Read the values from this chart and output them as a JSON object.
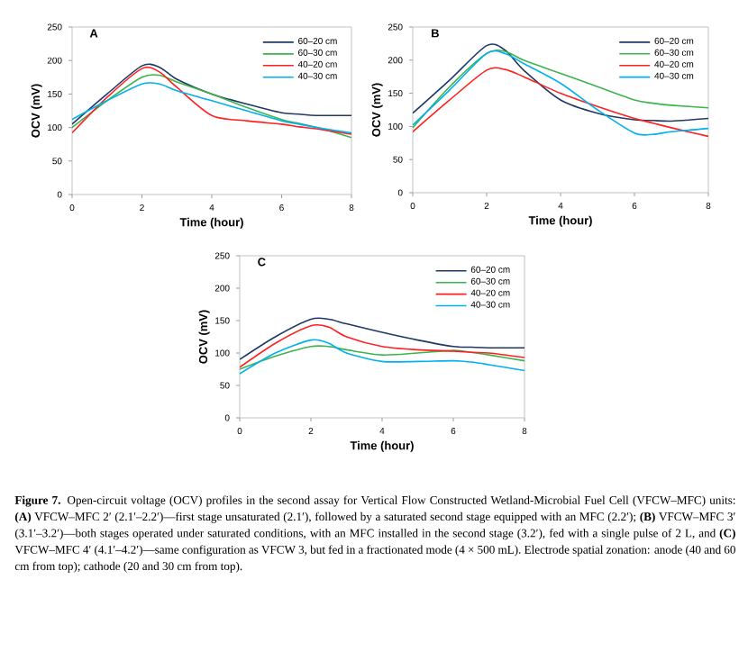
{
  "chart_data": [
    {
      "type": "line",
      "title": "A",
      "xlabel": "Time (hour)",
      "ylabel": "OCV (mV)",
      "x": [
        0,
        1,
        2,
        2.5,
        3,
        4,
        5,
        6,
        6.5,
        7,
        8
      ],
      "xlim": [
        0,
        8
      ],
      "ylim": [
        0,
        250
      ],
      "xticks": [
        0,
        2,
        4,
        6,
        8
      ],
      "yticks": [
        0,
        50,
        100,
        150,
        200,
        250
      ],
      "legend": "top right",
      "series": [
        {
          "name": "60–20 cm",
          "color": "#1f3864",
          "values": [
            105,
            150,
            192,
            190,
            172,
            150,
            135,
            122,
            120,
            118,
            118
          ]
        },
        {
          "name": "60–30 cm",
          "color": "#3cb44b",
          "values": [
            100,
            140,
            175,
            178,
            168,
            150,
            130,
            112,
            106,
            100,
            85
          ]
        },
        {
          "name": "40–20 cm",
          "color": "#ff2020",
          "values": [
            92,
            145,
            188,
            183,
            160,
            118,
            110,
            105,
            101,
            98,
            90
          ]
        },
        {
          "name": "40–30 cm",
          "color": "#00b0f0",
          "values": [
            112,
            140,
            165,
            165,
            155,
            140,
            125,
            110,
            105,
            100,
            92
          ]
        }
      ]
    },
    {
      "type": "line",
      "title": "B",
      "xlabel": "Time (hour)",
      "ylabel": "OCV (mV)",
      "x": [
        0,
        1,
        2,
        2.5,
        3,
        4,
        5,
        6,
        6.5,
        7,
        8
      ],
      "xlim": [
        0,
        8
      ],
      "ylim": [
        0,
        250
      ],
      "xticks": [
        0,
        2,
        4,
        6,
        8
      ],
      "yticks": [
        0,
        50,
        100,
        150,
        200,
        250
      ],
      "legend": "top right",
      "series": [
        {
          "name": "60–20 cm",
          "color": "#1f3864",
          "values": [
            120,
            170,
            222,
            215,
            185,
            140,
            120,
            110,
            109,
            108,
            112
          ]
        },
        {
          "name": "60–30 cm",
          "color": "#3cb44b",
          "values": [
            98,
            160,
            210,
            213,
            200,
            180,
            160,
            140,
            135,
            132,
            128
          ]
        },
        {
          "name": "40–20 cm",
          "color": "#ff2020",
          "values": [
            92,
            140,
            185,
            186,
            175,
            150,
            130,
            112,
            105,
            98,
            85
          ]
        },
        {
          "name": "40–30 cm",
          "color": "#00b0f0",
          "values": [
            102,
            155,
            210,
            210,
            195,
            165,
            125,
            90,
            88,
            92,
            97
          ]
        }
      ]
    },
    {
      "type": "line",
      "title": "C",
      "xlabel": "Time (hour)",
      "ylabel": "OCV (mV)",
      "x": [
        0,
        1,
        2,
        2.5,
        3,
        4,
        5,
        6,
        6.5,
        7,
        8
      ],
      "xlim": [
        0,
        8
      ],
      "ylim": [
        0,
        250
      ],
      "xticks": [
        0,
        2,
        4,
        6,
        8
      ],
      "yticks": [
        0,
        50,
        100,
        150,
        200,
        250
      ],
      "legend": "top right",
      "series": [
        {
          "name": "60–20 cm",
          "color": "#1f3864",
          "values": [
            90,
            125,
            152,
            152,
            145,
            132,
            120,
            110,
            109,
            108,
            108
          ]
        },
        {
          "name": "60–30 cm",
          "color": "#3cb44b",
          "values": [
            75,
            95,
            110,
            110,
            105,
            97,
            100,
            104,
            101,
            97,
            88
          ]
        },
        {
          "name": "40–20 cm",
          "color": "#ff2020",
          "values": [
            78,
            115,
            142,
            140,
            125,
            110,
            105,
            103,
            101,
            100,
            93
          ]
        },
        {
          "name": "40–30 cm",
          "color": "#00b0f0",
          "values": [
            68,
            100,
            120,
            115,
            100,
            87,
            87,
            88,
            86,
            82,
            73
          ]
        }
      ],
      "annotations": [
        "**Figure 7.** Open-circuit voltage (OCV) profiles in the second assay for Vertical Flow Constructed Wetland-Microbial Fuel Cell (VFCW–MFC) units: **(A)** VFCW–MFC 2′ (2.1′–2.2′)—first stage unsaturated (2.1′), followed by a saturated second stage equipped with an MFC (2.2′); **(B)** VFCW–MFC 3′ (3.1′–3.2′)—both stages operated under saturated conditions, with an MFC installed in the second stage (3.2′), fed with a single pulse of 2 L, and **(C)** VFCW–MFC 4′ (4.1′–4.2′)—same configuration as VFCW 3, but fed in a fractionated mode (4 × 500 mL). Electrode spatial zonation: anode (40 and 60 cm from top); cathode (20 and 30 cm from top)."
      ]
    }
  ]
}
